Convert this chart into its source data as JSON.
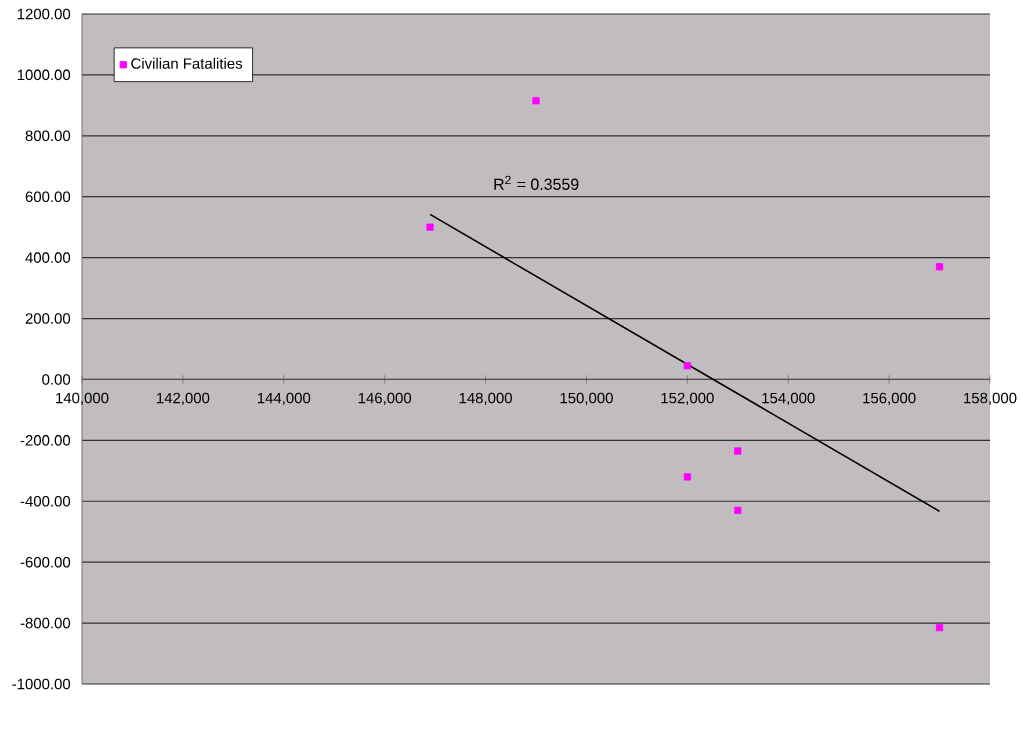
{
  "chart_data": {
    "type": "scatter",
    "xlim": [
      140000,
      158000
    ],
    "ylim": [
      -1000,
      1200
    ],
    "xticks": [
      {
        "value": 140000,
        "label": "140,000"
      },
      {
        "value": 142000,
        "label": "142,000"
      },
      {
        "value": 144000,
        "label": "144,000"
      },
      {
        "value": 146000,
        "label": "146,000"
      },
      {
        "value": 148000,
        "label": "148,000"
      },
      {
        "value": 150000,
        "label": "150,000"
      },
      {
        "value": 152000,
        "label": "152,000"
      },
      {
        "value": 154000,
        "label": "154,000"
      },
      {
        "value": 156000,
        "label": "156,000"
      },
      {
        "value": 158000,
        "label": "158,000"
      }
    ],
    "yticks": [
      {
        "value": -1000,
        "label": "-1000.00"
      },
      {
        "value": -800,
        "label": "-800.00"
      },
      {
        "value": -600,
        "label": "-600.00"
      },
      {
        "value": -400,
        "label": "-400.00"
      },
      {
        "value": -200,
        "label": "-200.00"
      },
      {
        "value": 0,
        "label": "0.00"
      },
      {
        "value": 200,
        "label": "200.00"
      },
      {
        "value": 400,
        "label": "400.00"
      },
      {
        "value": 600,
        "label": "600.00"
      },
      {
        "value": 800,
        "label": "800.00"
      },
      {
        "value": 1000,
        "label": "1000.00"
      },
      {
        "value": 1200,
        "label": "1200.00"
      }
    ],
    "series": [
      {
        "name": "Civilian Fatalities",
        "color": "#ff00ff",
        "x": [
          146900,
          149000,
          152000,
          152000,
          153000,
          153000,
          157000,
          157000
        ],
        "values": [
          500,
          915,
          45,
          -320,
          -235,
          -430,
          370,
          -815
        ]
      },
      {
        "type": "line",
        "marker": "none",
        "color": "#000000",
        "x": [
          146900,
          157000
        ],
        "values": [
          542,
          -433
        ]
      }
    ],
    "annotations": [
      "R$^{2}$ = 0.3559"
    ],
    "grid": "y",
    "legend": "top left",
    "marker": "square"
  }
}
